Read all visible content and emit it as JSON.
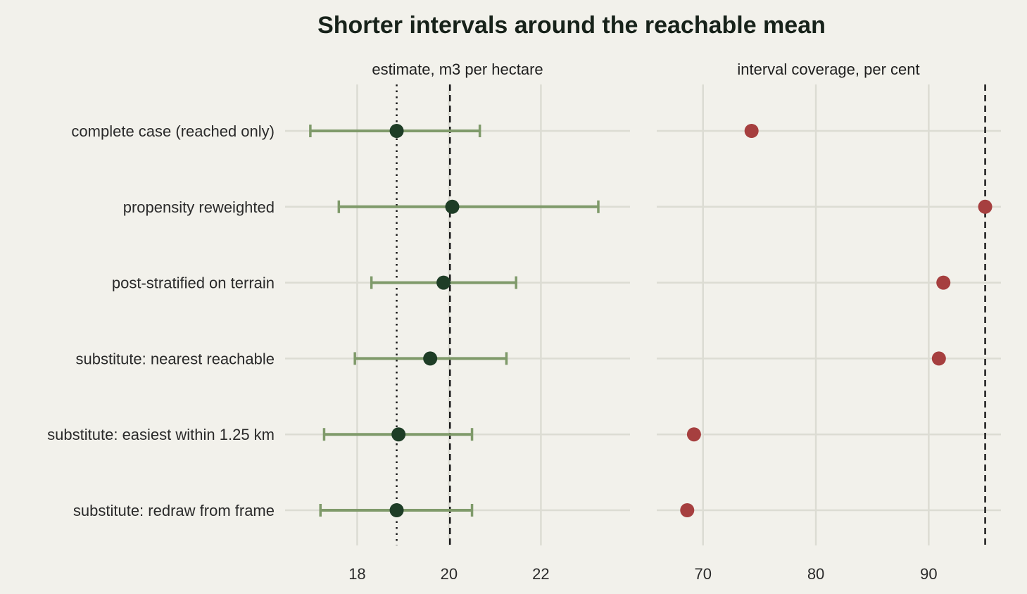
{
  "chart_data": {
    "type": "scatter",
    "title": "Shorter intervals around the reachable mean",
    "categories": [
      "complete case (reached only)",
      "propensity reweighted",
      "post-stratified on terrain",
      "substitute: nearest reachable",
      "substitute: easiest within 1.25 km",
      "substitute: redraw from frame"
    ],
    "panels": [
      {
        "title": "estimate, m3 per hectare",
        "ticks": [
          18,
          20,
          22
        ],
        "xlim": [
          16.43,
          23.94
        ],
        "reference_lines": [
          {
            "value": 20.02,
            "style": "dashed"
          },
          {
            "value": 18.86,
            "style": "dotted"
          }
        ],
        "series": [
          {
            "estimate": [
              18.86,
              20.07,
              19.88,
              19.59,
              18.9,
              18.86
            ],
            "lower": [
              16.98,
              17.6,
              18.31,
              17.95,
              17.28,
              17.2
            ],
            "upper": [
              20.67,
              23.25,
              21.46,
              21.25,
              20.5,
              20.5
            ],
            "point_color": "#1e3d26",
            "interval_color": "#7f9a6a"
          }
        ]
      },
      {
        "title": "interval coverage, per cent",
        "ticks": [
          70,
          80,
          90
        ],
        "xlim": [
          65.9,
          96.4
        ],
        "reference_lines": [
          {
            "value": 95,
            "style": "dashed"
          }
        ],
        "series": [
          {
            "values": [
              74.3,
              95.0,
              91.3,
              90.9,
              69.2,
              68.6
            ],
            "point_color": "#a63f3f"
          }
        ]
      }
    ]
  }
}
